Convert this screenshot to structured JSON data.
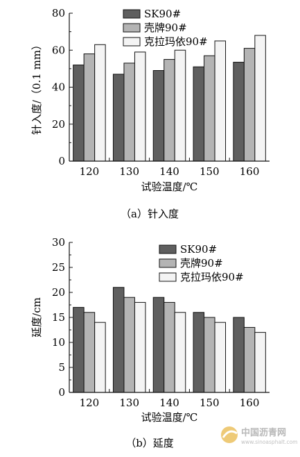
{
  "chart_data": [
    {
      "type": "bar",
      "caption": "（a）针入度",
      "categories": [
        "120",
        "130",
        "140",
        "150",
        "160"
      ],
      "series": [
        {
          "name": "SK90#",
          "color": "#5f5f5f",
          "values": [
            52,
            47,
            49,
            51,
            53.5
          ]
        },
        {
          "name": "壳牌90#",
          "color": "#b4b4b4",
          "values": [
            58,
            53,
            55,
            57,
            61
          ]
        },
        {
          "name": "克拉玛依90#",
          "color": "#f4f4f4",
          "values": [
            63,
            59,
            60,
            65,
            68
          ]
        }
      ],
      "xlabel": "试验温度/℃",
      "ylabel": "针入度/（0.1 mm）",
      "ylim": [
        0,
        80
      ],
      "yticks": [
        0,
        20,
        40,
        60,
        80
      ],
      "legend": "top-right",
      "grid": false
    },
    {
      "type": "bar",
      "caption": "（b）延度",
      "categories": [
        "120",
        "130",
        "140",
        "150",
        "160"
      ],
      "series": [
        {
          "name": "SK90#",
          "color": "#5f5f5f",
          "values": [
            17,
            21,
            19,
            16,
            15
          ]
        },
        {
          "name": "壳牌90#",
          "color": "#b4b4b4",
          "values": [
            16,
            19,
            18,
            15,
            13
          ]
        },
        {
          "name": "克拉玛依90#",
          "color": "#f4f4f4",
          "values": [
            14,
            18,
            16,
            14,
            12
          ]
        }
      ],
      "xlabel": "试验温度/℃",
      "ylabel": "延度/cm",
      "ylim": [
        0,
        30
      ],
      "yticks": [
        0,
        5,
        10,
        15,
        20,
        25,
        30
      ],
      "legend": "top-right",
      "grid": false
    }
  ],
  "watermark": {
    "title": "中国沥青网",
    "url": "www.sinoasphalt.com"
  }
}
